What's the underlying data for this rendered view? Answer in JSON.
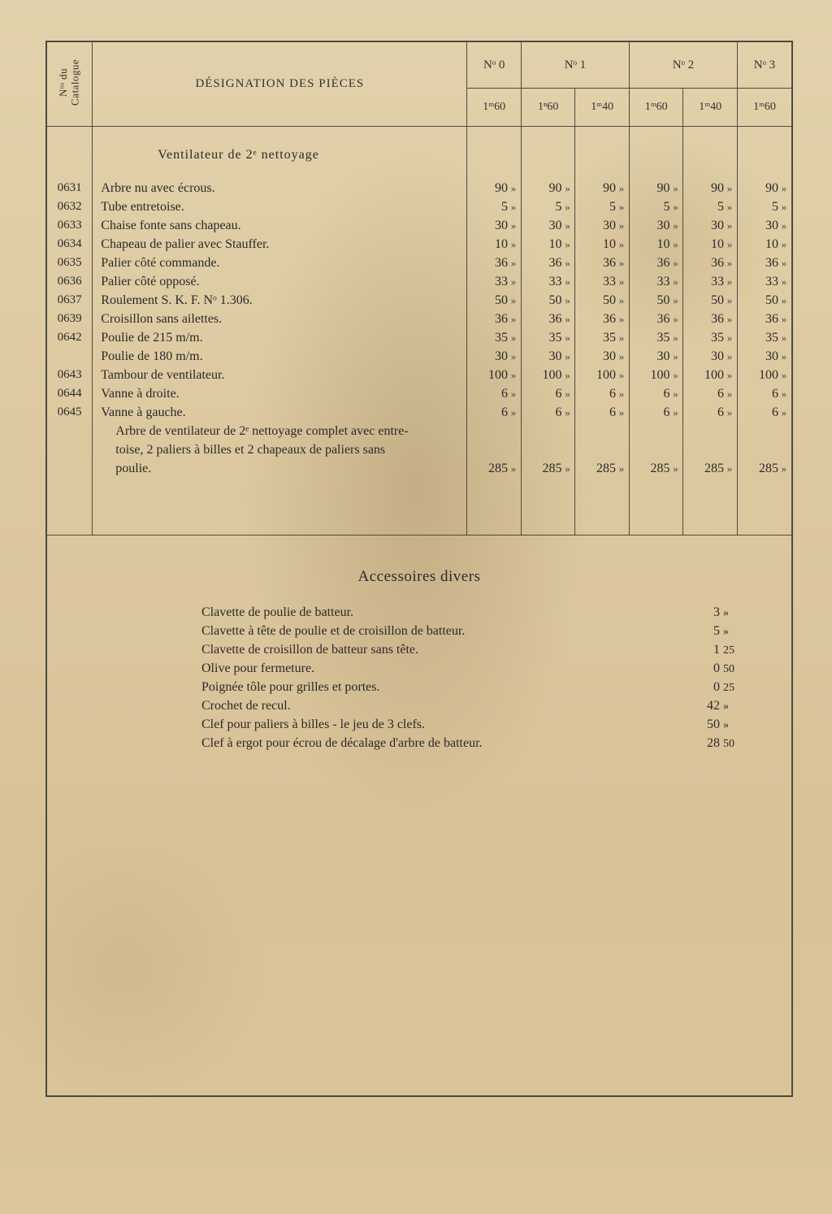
{
  "colors": {
    "paper_base": "#dcc89f",
    "ink": "#2a2a2a",
    "rule": "#4a4a42"
  },
  "typography": {
    "body_family": "Times New Roman, serif",
    "body_size_pt": 12,
    "title_size_pt": 15
  },
  "header": {
    "catalogue_label": "Nᵒˢ du\nCatalogue",
    "designation_label": "DÉSIGNATION DES PIÈCES",
    "groups": [
      {
        "label": "Nᵒ 0",
        "subs": [
          "1ᵐ60"
        ]
      },
      {
        "label": "Nᵒ 1",
        "subs": [
          "1ⁿ60",
          "1ᵐ40"
        ]
      },
      {
        "label": "Nᵒ 2",
        "subs": [
          "1ᵐ60",
          "1ᵐ40"
        ]
      },
      {
        "label": "Nᵒ 3",
        "subs": [
          "1ᵐ60"
        ]
      }
    ]
  },
  "section1_title": "Ventilateur de 2ᵉ nettoyage",
  "rows": [
    {
      "cat": "0631",
      "label": "Arbre nu avec écrous.",
      "vals": [
        "90",
        "90",
        "90",
        "90",
        "90",
        "90"
      ]
    },
    {
      "cat": "0632",
      "label": "Tube entretoise.",
      "vals": [
        "5",
        "5",
        "5",
        "5",
        "5",
        "5"
      ]
    },
    {
      "cat": "0633",
      "label": "Chaise fonte sans chapeau.",
      "vals": [
        "30",
        "30",
        "30",
        "30",
        "30",
        "30"
      ]
    },
    {
      "cat": "0634",
      "label": "Chapeau de palier avec Stauffer.",
      "vals": [
        "10",
        "10",
        "10",
        "10",
        "10",
        "10"
      ]
    },
    {
      "cat": "0635",
      "label": "Palier côté commande.",
      "vals": [
        "36",
        "36",
        "36",
        "36",
        "36",
        "36"
      ]
    },
    {
      "cat": "0636",
      "label": "Palier côté opposé.",
      "vals": [
        "33",
        "33",
        "33",
        "33",
        "33",
        "33"
      ]
    },
    {
      "cat": "0637",
      "label": "Roulement S. K. F. Nᵒ 1.306.",
      "vals": [
        "50",
        "50",
        "50",
        "50",
        "50",
        "50"
      ]
    },
    {
      "cat": "0639",
      "label": "Croisillon sans ailettes.",
      "vals": [
        "36",
        "36",
        "36",
        "36",
        "36",
        "36"
      ]
    },
    {
      "cat": "0642",
      "label": "Poulie de 215 m/m.",
      "vals": [
        "35",
        "35",
        "35",
        "35",
        "35",
        "35"
      ]
    },
    {
      "cat": "",
      "label": "Poulie de 180 m/m.",
      "vals": [
        "30",
        "30",
        "30",
        "30",
        "30",
        "30"
      ]
    },
    {
      "cat": "0643",
      "label": "Tambour de ventilateur.",
      "vals": [
        "100",
        "100",
        "100",
        "100",
        "100",
        "100"
      ]
    },
    {
      "cat": "0644",
      "label": "Vanne à droite.",
      "vals": [
        "6",
        "6",
        "6",
        "6",
        "6",
        "6"
      ]
    },
    {
      "cat": "0645",
      "label": "Vanne à gauche.",
      "vals": [
        "6",
        "6",
        "6",
        "6",
        "6",
        "6"
      ]
    }
  ],
  "assembly": {
    "lines": [
      "Arbre de ventilateur de 2ᵉ nettoyage complet avec entre-",
      "toise, 2 paliers à billes et 2 chapeaux de paliers sans",
      "poulie."
    ],
    "vals": [
      "285",
      "285",
      "285",
      "285",
      "285",
      "285"
    ]
  },
  "section2_title": "Accessoires divers",
  "accessories": [
    {
      "label": "Clavette de poulie de batteur.",
      "v": "3",
      "c": "»"
    },
    {
      "label": "Clavette à tête de poulie et de croisillon de batteur.",
      "v": "5",
      "c": "»"
    },
    {
      "label": "Clavette de croisillon de batteur sans tête.",
      "v": "1",
      "c": "25"
    },
    {
      "label": "Olive pour fermeture.",
      "v": "0",
      "c": "50"
    },
    {
      "label": "Poignée tôle pour grilles et portes.",
      "v": "0",
      "c": "25"
    },
    {
      "label": "Crochet de recul.",
      "v": "42",
      "c": "»"
    },
    {
      "label": "Clef pour paliers à billes - le jeu de 3 clefs.",
      "v": "50",
      "c": "»"
    },
    {
      "label": "Clef à ergot pour écrou de décalage d'arbre de batteur.",
      "v": "28",
      "c": "50"
    }
  ],
  "ditto_mark": "»"
}
